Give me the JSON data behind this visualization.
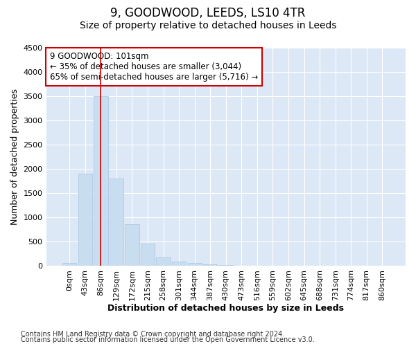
{
  "title": "9, GOODWOOD, LEEDS, LS10 4TR",
  "subtitle": "Size of property relative to detached houses in Leeds",
  "xlabel": "Distribution of detached houses by size in Leeds",
  "ylabel": "Number of detached properties",
  "bar_color": "#c8ddf0",
  "bar_edge_color": "#a8c4e0",
  "vline_color": "#cc0000",
  "vline_x": 2,
  "annotation_title": "9 GOODWOOD: 101sqm",
  "annotation_line1": "← 35% of detached houses are smaller (3,044)",
  "annotation_line2": "65% of semi-detached houses are larger (5,716) →",
  "annotation_box_color": "#cc0000",
  "categories": [
    "0sqm",
    "43sqm",
    "86sqm",
    "129sqm",
    "172sqm",
    "215sqm",
    "258sqm",
    "301sqm",
    "344sqm",
    "387sqm",
    "430sqm",
    "473sqm",
    "516sqm",
    "559sqm",
    "602sqm",
    "645sqm",
    "688sqm",
    "731sqm",
    "774sqm",
    "817sqm",
    "860sqm"
  ],
  "values": [
    50,
    1900,
    3500,
    1800,
    850,
    450,
    175,
    90,
    55,
    30,
    10,
    5,
    0,
    0,
    0,
    0,
    0,
    0,
    0,
    0,
    0
  ],
  "ylim": [
    0,
    4500
  ],
  "yticks": [
    0,
    500,
    1000,
    1500,
    2000,
    2500,
    3000,
    3500,
    4000,
    4500
  ],
  "footer_line1": "Contains HM Land Registry data © Crown copyright and database right 2024.",
  "footer_line2": "Contains public sector information licensed under the Open Government Licence v3.0.",
  "figure_background_color": "#ffffff",
  "plot_background_color": "#dce8f5",
  "grid_color": "#ffffff",
  "title_fontsize": 12,
  "subtitle_fontsize": 10,
  "label_fontsize": 9,
  "tick_fontsize": 8,
  "footer_fontsize": 7
}
